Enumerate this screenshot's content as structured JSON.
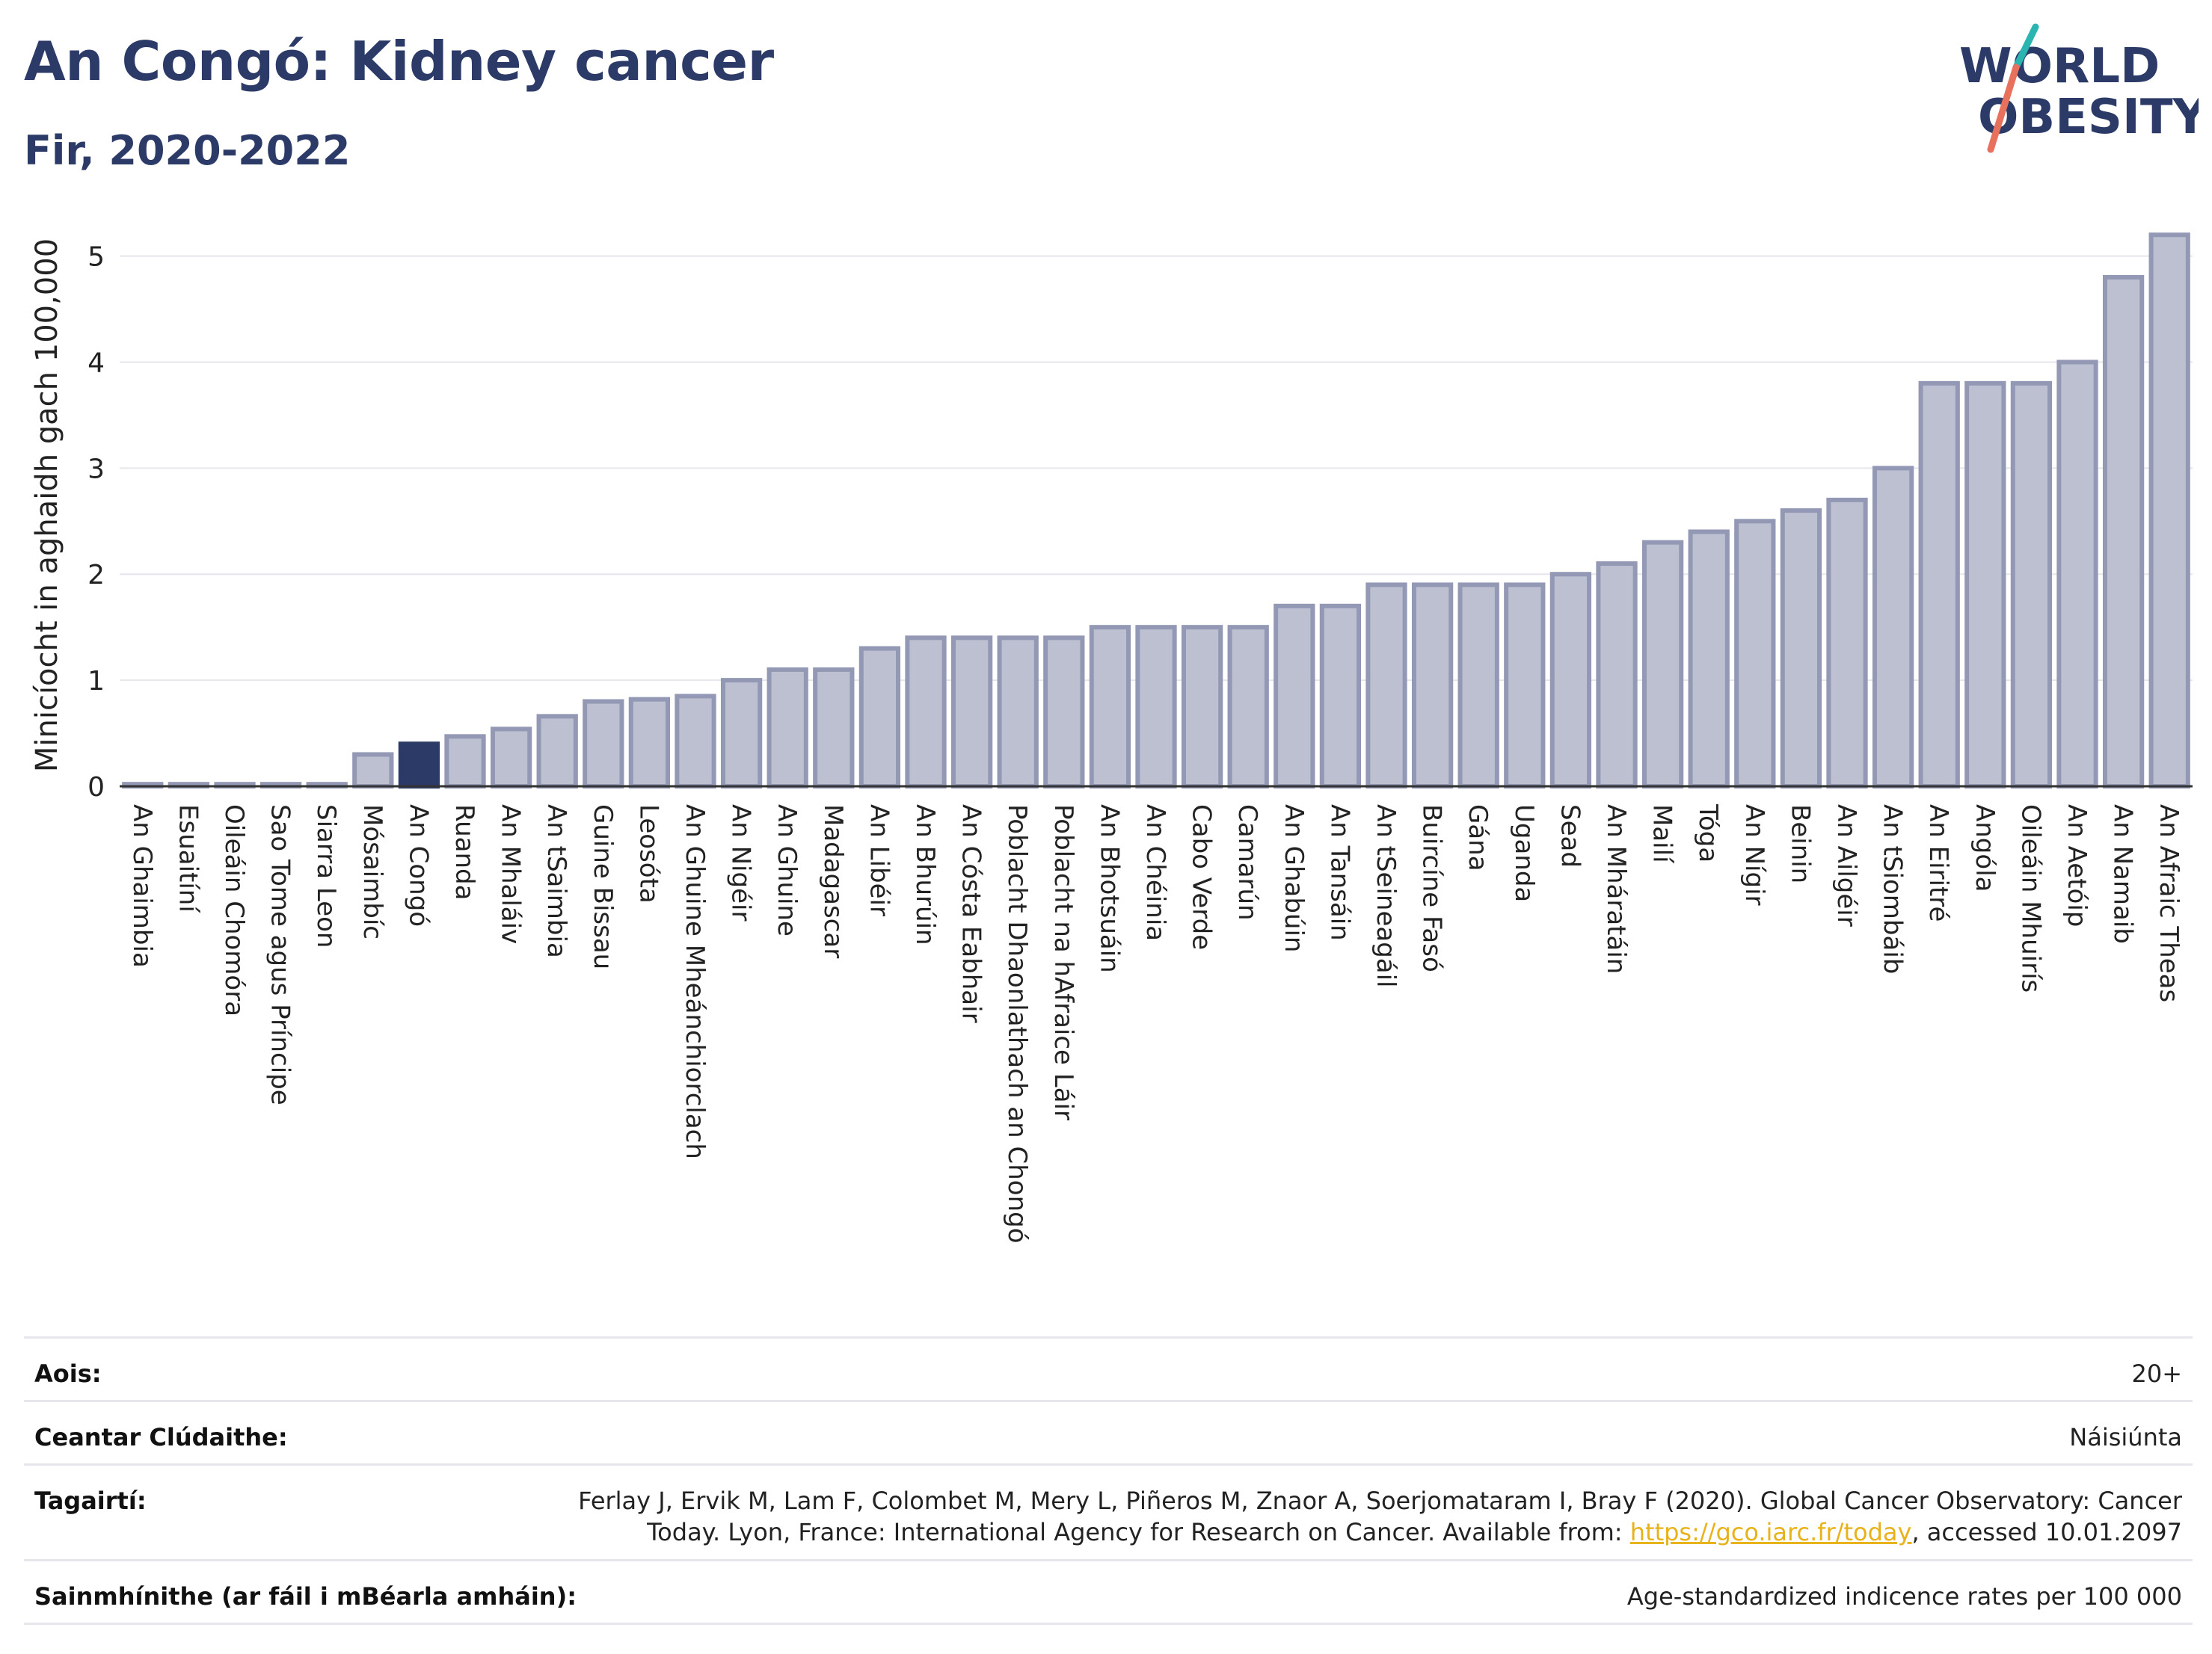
{
  "header": {
    "title": "An Congó: Kidney cancer",
    "subtitle": "Fir, 2020-2022"
  },
  "logo": {
    "line1": "WORLD",
    "line2": "OBESITY",
    "accent_colors": [
      "#2bb5b0",
      "#e8715d"
    ]
  },
  "colors": {
    "bar": "#bcc0d0",
    "bar_stroke": "#9398b4",
    "highlight": "#2b3a67",
    "title": "#2b3a67"
  },
  "chart_data": {
    "type": "bar",
    "ylabel": "Minicíocht in aghaidh gach 100,000",
    "ylim": [
      0,
      5.3
    ],
    "yticks": [
      0,
      1,
      2,
      3,
      4,
      5
    ],
    "grid": true,
    "highlight": "An Congó",
    "categories": [
      "An Ghaimbia",
      "Esuaitíní",
      "Oileáin Chomóra",
      "Sao Tome agus Príncipe",
      "Siarra Leon",
      "Mósaimbíc",
      "An Congó",
      "Ruanda",
      "An Mhaláiv",
      "An tSaimbia",
      "Guine Bissau",
      "Leosóta",
      "An Ghuine Mheánchiorclach",
      "An Nigéir",
      "An Ghuine",
      "Madagascar",
      "An Libéir",
      "An Bhurúin",
      "An Cósta Eabhair",
      "Poblacht Dhaonlathach an Chongó",
      "Poblacht na hAfraice Láir",
      "An Bhotsuáin",
      "An Chéinia",
      "Cabo Verde",
      "Camarún",
      "An Ghabúin",
      "An Tansáin",
      "An tSeineagáil",
      "Buircíne Fasó",
      "Gána",
      "Uganda",
      "Sead",
      "An Mháratáin",
      "Mailí",
      "Tóga",
      "An Nígir",
      "Beinin",
      "An Ailgéir",
      "An tSiombáib",
      "An Eiritré",
      "Angóla",
      "Oileáin Mhuirís",
      "An Aetóip",
      "An Namaib",
      "An Afraic Theas"
    ],
    "values": [
      0.02,
      0.02,
      0.02,
      0.02,
      0.02,
      0.3,
      0.4,
      0.47,
      0.54,
      0.66,
      0.8,
      0.82,
      0.85,
      1.0,
      1.1,
      1.1,
      1.3,
      1.4,
      1.4,
      1.4,
      1.4,
      1.5,
      1.5,
      1.5,
      1.5,
      1.7,
      1.7,
      1.9,
      1.9,
      1.9,
      1.9,
      2.0,
      2.1,
      2.3,
      2.4,
      2.5,
      2.6,
      2.7,
      3.0,
      3.8,
      3.8,
      3.8,
      4.0,
      4.8,
      5.2
    ]
  },
  "info": {
    "age_label": "Aois:",
    "age_value": "20+",
    "coverage_label": "Ceantar Clúdaithe:",
    "coverage_value": "Náisiúnta",
    "reference_label": "Tagairtí:",
    "reference_line1": "Ferlay J, Ervik M, Lam F, Colombet M, Mery L, Piñeros M, Znaor A, Soerjomataram I, Bray F (2020). Global Cancer Observatory: Cancer",
    "reference_line2_pre": "Today. Lyon, France: International Agency for Research on Cancer. Available from: ",
    "reference_link": "https://gco.iarc.fr/today",
    "reference_line2_post": ", accessed 10.01.2097",
    "definitions_label": "Sainmhínithe (ar fáil i mBéarla amháin):",
    "definitions_value": "Age-standardized indicence rates per 100 000"
  }
}
